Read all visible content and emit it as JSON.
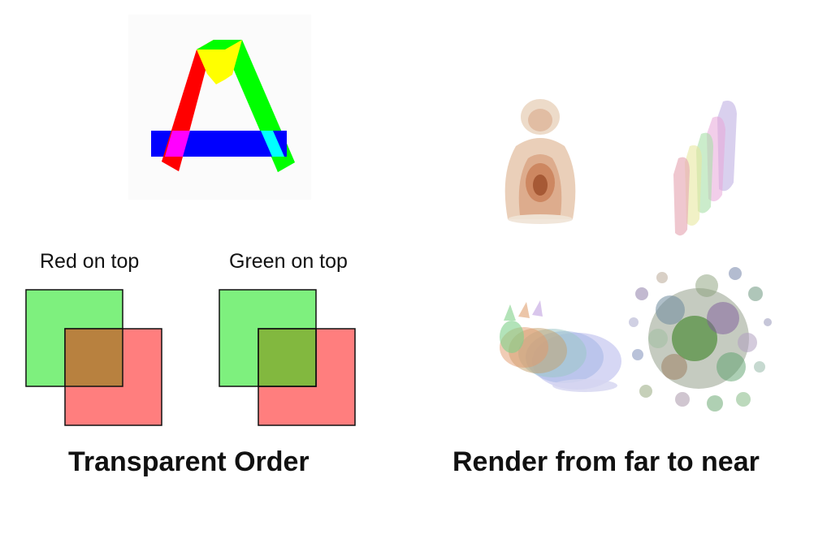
{
  "left": {
    "red_label": "Red on top",
    "green_label": "Green on top",
    "caption": "Transparent Order"
  },
  "right": {
    "caption": "Render from far to near"
  },
  "colors": {
    "red": "#ff0000",
    "green": "#00ff00",
    "blue": "#0000ff",
    "yellow": "#ffff00",
    "cyan": "#00ffff",
    "magenta": "#ff00ff",
    "square_green": "#7ff07f",
    "square_red": "#ff7f7f"
  }
}
